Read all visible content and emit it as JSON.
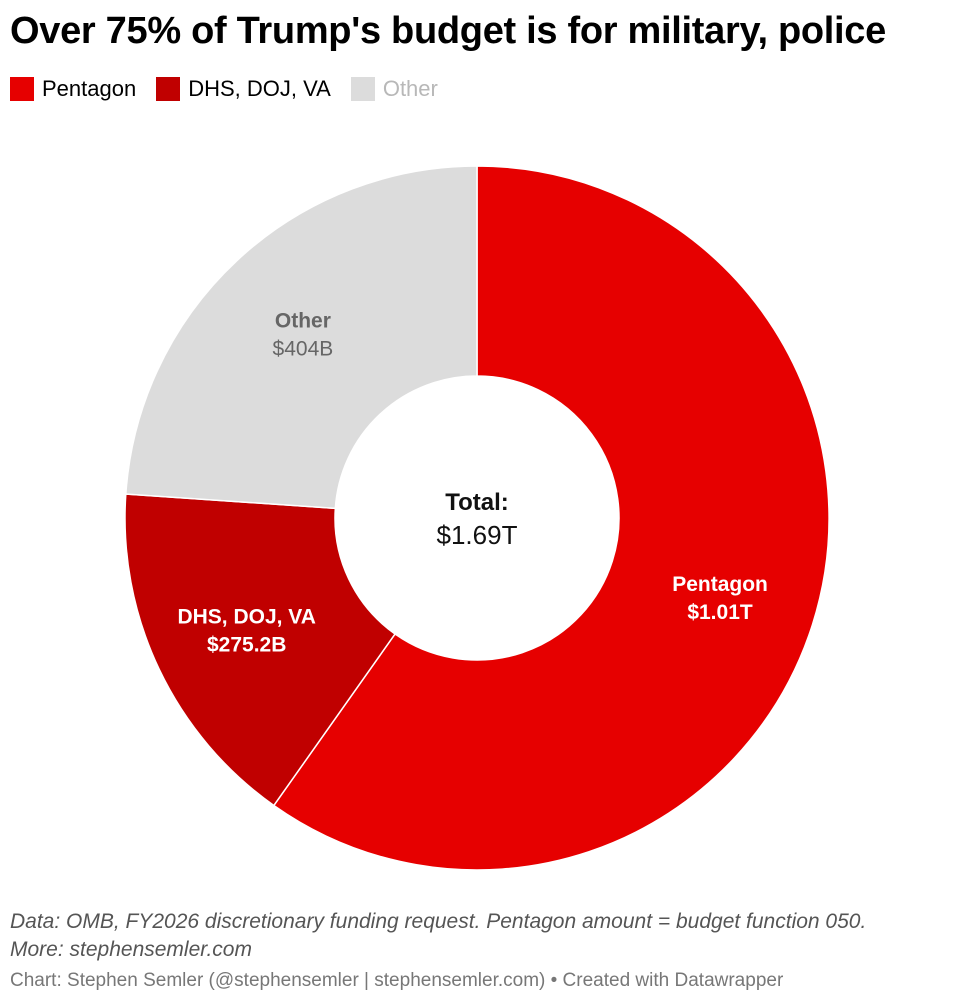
{
  "title": "Over 75% of Trump's budget is for military, police",
  "colors": {
    "pentagon": "#e60000",
    "dhs": "#c00000",
    "other": "#dcdcdc"
  },
  "legend": [
    {
      "label": "Pentagon",
      "color": "#e60000"
    },
    {
      "label": "DHS, DOJ, VA",
      "color": "#c00000"
    },
    {
      "label": "Other",
      "color": "#dcdcdc"
    }
  ],
  "chart_data": {
    "type": "pie",
    "donut": true,
    "legend_position": "top-left",
    "center_label": "Total:",
    "center_value": "$1.69T",
    "slices": [
      {
        "label": "Pentagon",
        "value": 1010,
        "display": "$1.01T",
        "color": "#e60000",
        "text_color": "#ffffff"
      },
      {
        "label": "DHS, DOJ, VA",
        "value": 275.2,
        "display": "$275.2B",
        "color": "#c00000",
        "text_color": "#ffffff"
      },
      {
        "label": "Other",
        "value": 404,
        "display": "$404B",
        "color": "#dcdcdc",
        "text_color": "#666666"
      }
    ]
  },
  "notes": {
    "line1": "Data: OMB, FY2026 discretionary funding request. Pentagon amount = budget function 050.",
    "line2": "More: stephensemler.com"
  },
  "credit": "Chart: Stephen Semler (@stephensemler | stephensemler.com) • Created with Datawrapper"
}
